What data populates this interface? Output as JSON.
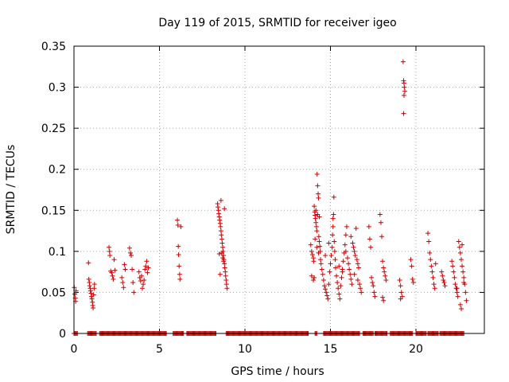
{
  "chart_data": {
    "type": "scatter",
    "title": "Day 119 of 2015, SRMTID for receiver igeo",
    "xlabel": "GPS time / hours",
    "ylabel": "SRMTID / TECUs",
    "xlim": [
      0,
      24
    ],
    "ylim": [
      0,
      0.35
    ],
    "grid": true,
    "marker": "plus",
    "color": "#cc0000",
    "xticks": [
      {
        "value": 0,
        "label": "0"
      },
      {
        "value": 5,
        "label": "5"
      },
      {
        "value": 10,
        "label": "10"
      },
      {
        "value": 15,
        "label": "15"
      },
      {
        "value": 20,
        "label": "20"
      }
    ],
    "yticks": [
      {
        "value": 0,
        "label": "0"
      },
      {
        "value": 0.05,
        "label": "0.05"
      },
      {
        "value": 0.1,
        "label": "0.1"
      },
      {
        "value": 0.15,
        "label": "0.15"
      },
      {
        "value": 0.2,
        "label": "0.2"
      },
      {
        "value": 0.25,
        "label": "0.25"
      },
      {
        "value": 0.3,
        "label": "0.3"
      },
      {
        "value": 0.35,
        "label": "0.35"
      }
    ],
    "series": [
      {
        "name": "SRMTID",
        "points": [
          [
            0.02,
            0.056
          ],
          [
            0.05,
            0.048
          ],
          [
            0.08,
            0.043
          ],
          [
            0.1,
            0.039
          ],
          [
            0.12,
            0.052
          ],
          [
            0.85,
            0.086
          ],
          [
            0.87,
            0.066
          ],
          [
            0.9,
            0.062
          ],
          [
            0.92,
            0.058
          ],
          [
            0.95,
            0.055
          ],
          [
            0.97,
            0.052
          ],
          [
            1.0,
            0.049
          ],
          [
            1.02,
            0.045
          ],
          [
            1.05,
            0.042
          ],
          [
            1.08,
            0.038
          ],
          [
            1.1,
            0.034
          ],
          [
            1.12,
            0.031
          ],
          [
            1.15,
            0.047
          ],
          [
            1.18,
            0.055
          ],
          [
            1.2,
            0.06
          ],
          [
            2.05,
            0.105
          ],
          [
            2.08,
            0.1
          ],
          [
            2.1,
            0.095
          ],
          [
            2.15,
            0.076
          ],
          [
            2.2,
            0.074
          ],
          [
            2.25,
            0.07
          ],
          [
            2.3,
            0.066
          ],
          [
            2.35,
            0.09
          ],
          [
            2.4,
            0.077
          ],
          [
            2.8,
            0.068
          ],
          [
            2.85,
            0.062
          ],
          [
            2.9,
            0.056
          ],
          [
            2.95,
            0.084
          ],
          [
            3.0,
            0.078
          ],
          [
            3.25,
            0.104
          ],
          [
            3.3,
            0.098
          ],
          [
            3.35,
            0.095
          ],
          [
            3.4,
            0.078
          ],
          [
            3.45,
            0.062
          ],
          [
            3.5,
            0.05
          ],
          [
            3.8,
            0.075
          ],
          [
            3.85,
            0.068
          ],
          [
            3.9,
            0.064
          ],
          [
            3.95,
            0.07
          ],
          [
            4.0,
            0.055
          ],
          [
            4.05,
            0.06
          ],
          [
            4.1,
            0.065
          ],
          [
            4.15,
            0.078
          ],
          [
            4.2,
            0.082
          ],
          [
            4.25,
            0.088
          ],
          [
            4.3,
            0.074
          ],
          [
            4.35,
            0.08
          ],
          [
            6.05,
            0.138
          ],
          [
            6.08,
            0.132
          ],
          [
            6.1,
            0.106
          ],
          [
            6.12,
            0.096
          ],
          [
            6.15,
            0.082
          ],
          [
            6.18,
            0.072
          ],
          [
            6.2,
            0.066
          ],
          [
            6.25,
            0.13
          ],
          [
            8.4,
            0.158
          ],
          [
            8.42,
            0.154
          ],
          [
            8.45,
            0.15
          ],
          [
            8.47,
            0.146
          ],
          [
            8.5,
            0.142
          ],
          [
            8.52,
            0.138
          ],
          [
            8.55,
            0.134
          ],
          [
            8.57,
            0.13
          ],
          [
            8.6,
            0.125
          ],
          [
            8.62,
            0.12
          ],
          [
            8.65,
            0.115
          ],
          [
            8.67,
            0.11
          ],
          [
            8.7,
            0.105
          ],
          [
            8.72,
            0.1
          ],
          [
            8.75,
            0.095
          ],
          [
            8.77,
            0.09
          ],
          [
            8.8,
            0.085
          ],
          [
            8.82,
            0.08
          ],
          [
            8.85,
            0.075
          ],
          [
            8.87,
            0.07
          ],
          [
            8.9,
            0.065
          ],
          [
            8.92,
            0.06
          ],
          [
            8.95,
            0.055
          ],
          [
            8.6,
            0.162
          ],
          [
            8.65,
            0.098
          ],
          [
            8.7,
            0.092
          ],
          [
            8.75,
            0.088
          ],
          [
            8.55,
            0.072
          ],
          [
            8.5,
            0.097
          ],
          [
            8.8,
            0.152
          ],
          [
            13.85,
            0.108
          ],
          [
            13.9,
            0.1
          ],
          [
            13.95,
            0.096
          ],
          [
            14.0,
            0.092
          ],
          [
            14.02,
            0.088
          ],
          [
            14.05,
            0.155
          ],
          [
            14.08,
            0.148
          ],
          [
            14.1,
            0.144
          ],
          [
            14.12,
            0.14
          ],
          [
            14.15,
            0.135
          ],
          [
            14.18,
            0.13
          ],
          [
            14.2,
            0.125
          ],
          [
            14.22,
            0.194
          ],
          [
            14.25,
            0.18
          ],
          [
            14.28,
            0.17
          ],
          [
            14.3,
            0.165
          ],
          [
            14.32,
            0.118
          ],
          [
            14.35,
            0.112
          ],
          [
            14.38,
            0.106
          ],
          [
            14.4,
            0.1
          ],
          [
            14.42,
            0.09
          ],
          [
            14.45,
            0.085
          ],
          [
            14.5,
            0.078
          ],
          [
            14.55,
            0.072
          ],
          [
            13.9,
            0.07
          ],
          [
            14.0,
            0.065
          ],
          [
            14.1,
            0.115
          ],
          [
            14.2,
            0.105
          ],
          [
            14.3,
            0.098
          ],
          [
            14.15,
            0.15
          ],
          [
            14.25,
            0.145
          ],
          [
            14.35,
            0.142
          ],
          [
            14.05,
            0.068
          ],
          [
            14.6,
            0.065
          ],
          [
            14.65,
            0.058
          ],
          [
            14.7,
            0.054
          ],
          [
            14.75,
            0.05
          ],
          [
            14.8,
            0.046
          ],
          [
            14.85,
            0.042
          ],
          [
            14.9,
            0.06
          ],
          [
            14.95,
            0.075
          ],
          [
            15.0,
            0.085
          ],
          [
            15.05,
            0.095
          ],
          [
            15.1,
            0.105
          ],
          [
            15.12,
            0.12
          ],
          [
            15.15,
            0.13
          ],
          [
            15.18,
            0.145
          ],
          [
            15.2,
            0.166
          ],
          [
            15.22,
            0.112
          ],
          [
            15.25,
            0.1
          ],
          [
            15.28,
            0.09
          ],
          [
            15.3,
            0.08
          ],
          [
            15.35,
            0.07
          ],
          [
            15.4,
            0.062
          ],
          [
            15.45,
            0.055
          ],
          [
            15.5,
            0.048
          ],
          [
            15.55,
            0.042
          ],
          [
            15.6,
            0.058
          ],
          [
            15.65,
            0.068
          ],
          [
            15.7,
            0.078
          ],
          [
            15.75,
            0.088
          ],
          [
            15.8,
            0.098
          ],
          [
            15.85,
            0.108
          ],
          [
            15.9,
            0.12
          ],
          [
            15.95,
            0.13
          ],
          [
            16.0,
            0.092
          ],
          [
            16.05,
            0.085
          ],
          [
            16.1,
            0.078
          ],
          [
            16.15,
            0.072
          ],
          [
            16.2,
            0.066
          ],
          [
            16.25,
            0.06
          ],
          [
            16.3,
            0.11
          ],
          [
            16.35,
            0.105
          ],
          [
            16.4,
            0.1
          ],
          [
            16.45,
            0.095
          ],
          [
            16.5,
            0.128
          ],
          [
            16.55,
            0.09
          ],
          [
            16.6,
            0.085
          ],
          [
            16.65,
            0.08
          ],
          [
            16.7,
            0.06
          ],
          [
            16.75,
            0.055
          ],
          [
            16.8,
            0.05
          ],
          [
            14.7,
            0.095
          ],
          [
            14.9,
            0.11
          ],
          [
            15.15,
            0.14
          ],
          [
            15.5,
            0.082
          ],
          [
            15.7,
            0.075
          ],
          [
            15.9,
            0.1
          ],
          [
            16.2,
            0.118
          ],
          [
            16.4,
            0.072
          ],
          [
            16.6,
            0.065
          ],
          [
            17.25,
            0.13
          ],
          [
            17.3,
            0.115
          ],
          [
            17.35,
            0.105
          ],
          [
            17.4,
            0.068
          ],
          [
            17.45,
            0.062
          ],
          [
            17.5,
            0.058
          ],
          [
            17.55,
            0.05
          ],
          [
            17.6,
            0.045
          ],
          [
            17.9,
            0.145
          ],
          [
            17.95,
            0.135
          ],
          [
            18.0,
            0.118
          ],
          [
            18.05,
            0.088
          ],
          [
            18.1,
            0.08
          ],
          [
            18.15,
            0.075
          ],
          [
            18.2,
            0.07
          ],
          [
            18.25,
            0.065
          ],
          [
            18.05,
            0.044
          ],
          [
            18.1,
            0.04
          ],
          [
            19.05,
            0.065
          ],
          [
            19.1,
            0.058
          ],
          [
            19.15,
            0.05
          ],
          [
            19.2,
            0.045
          ],
          [
            19.1,
            0.042
          ],
          [
            19.25,
            0.331
          ],
          [
            19.28,
            0.308
          ],
          [
            19.3,
            0.305
          ],
          [
            19.32,
            0.3
          ],
          [
            19.35,
            0.295
          ],
          [
            19.3,
            0.29
          ],
          [
            19.28,
            0.268
          ],
          [
            19.7,
            0.09
          ],
          [
            19.75,
            0.082
          ],
          [
            19.8,
            0.066
          ],
          [
            19.85,
            0.062
          ],
          [
            20.7,
            0.122
          ],
          [
            20.75,
            0.112
          ],
          [
            20.8,
            0.098
          ],
          [
            20.85,
            0.09
          ],
          [
            20.9,
            0.082
          ],
          [
            20.95,
            0.075
          ],
          [
            21.0,
            0.068
          ],
          [
            21.05,
            0.06
          ],
          [
            21.1,
            0.055
          ],
          [
            21.15,
            0.085
          ],
          [
            21.5,
            0.075
          ],
          [
            21.55,
            0.07
          ],
          [
            21.6,
            0.065
          ],
          [
            21.65,
            0.062
          ],
          [
            21.7,
            0.058
          ],
          [
            22.1,
            0.088
          ],
          [
            22.15,
            0.082
          ],
          [
            22.2,
            0.075
          ],
          [
            22.25,
            0.068
          ],
          [
            22.3,
            0.06
          ],
          [
            22.35,
            0.055
          ],
          [
            22.4,
            0.05
          ],
          [
            22.45,
            0.045
          ],
          [
            22.5,
            0.112
          ],
          [
            22.55,
            0.105
          ],
          [
            22.6,
            0.098
          ],
          [
            22.65,
            0.09
          ],
          [
            22.7,
            0.082
          ],
          [
            22.75,
            0.075
          ],
          [
            22.8,
            0.068
          ],
          [
            22.85,
            0.06
          ],
          [
            22.9,
            0.05
          ],
          [
            22.95,
            0.04
          ],
          [
            22.6,
            0.035
          ],
          [
            22.65,
            0.03
          ],
          [
            22.4,
            0.055
          ],
          [
            22.7,
            0.108
          ],
          [
            22.8,
            0.062
          ]
        ],
        "zero_segments": [
          [
            0.0,
            0.2
          ],
          [
            0.8,
            1.3
          ],
          [
            1.5,
            5.4
          ],
          [
            5.8,
            6.4
          ],
          [
            6.6,
            8.3
          ],
          [
            8.9,
            13.7
          ],
          [
            14.1,
            14.2
          ],
          [
            14.6,
            16.7
          ],
          [
            16.9,
            17.5
          ],
          [
            17.6,
            18.3
          ],
          [
            18.5,
            19.8
          ],
          [
            20.0,
            20.6
          ],
          [
            20.7,
            21.3
          ],
          [
            21.4,
            22.8
          ]
        ]
      }
    ]
  }
}
